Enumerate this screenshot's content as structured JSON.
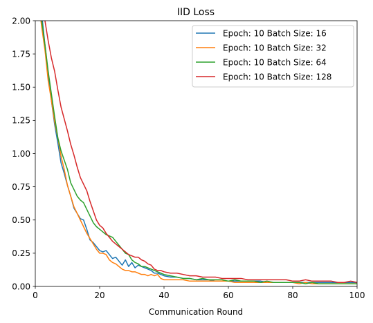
{
  "chart_data": {
    "type": "line",
    "title": "IID Loss",
    "xlabel": "Communication Round",
    "ylabel": "",
    "xlim": [
      0,
      100
    ],
    "ylim": [
      0,
      2.0
    ],
    "xticks": [
      0,
      20,
      40,
      60,
      80,
      100
    ],
    "xtick_labels": [
      "0",
      "20",
      "40",
      "60",
      "80",
      "100"
    ],
    "yticks": [
      0,
      0.25,
      0.5,
      0.75,
      1.0,
      1.25,
      1.5,
      1.75,
      2.0
    ],
    "ytick_labels": [
      "0.00",
      "0.25",
      "0.50",
      "0.75",
      "1.00",
      "1.25",
      "1.50",
      "1.75",
      "2.00"
    ],
    "grid": false,
    "legend_position": "top-right",
    "series": [
      {
        "name": "Epoch: 10 Batch Size: 16",
        "color": "#1f77b4",
        "x": [
          1,
          2,
          3,
          4,
          5,
          6,
          7,
          8,
          9,
          10,
          11,
          12,
          13,
          14,
          15,
          16,
          17,
          18,
          19,
          20,
          21,
          22,
          23,
          24,
          25,
          26,
          27,
          28,
          29,
          30,
          31,
          32,
          33,
          34,
          35,
          36,
          37,
          38,
          39,
          40,
          42,
          44,
          46,
          48,
          50,
          52,
          54,
          56,
          58,
          60,
          62,
          64,
          66,
          68,
          70,
          72,
          74,
          76,
          78,
          80,
          82,
          84,
          86,
          88,
          90,
          92,
          94,
          96,
          98,
          100
        ],
        "values": [
          2.2,
          2.05,
          1.82,
          1.6,
          1.4,
          1.22,
          1.08,
          0.93,
          0.85,
          0.76,
          0.68,
          0.59,
          0.55,
          0.51,
          0.5,
          0.43,
          0.35,
          0.33,
          0.3,
          0.27,
          0.26,
          0.27,
          0.24,
          0.21,
          0.22,
          0.19,
          0.16,
          0.2,
          0.15,
          0.18,
          0.14,
          0.16,
          0.15,
          0.14,
          0.13,
          0.12,
          0.1,
          0.1,
          0.09,
          0.08,
          0.07,
          0.07,
          0.06,
          0.06,
          0.05,
          0.05,
          0.05,
          0.04,
          0.04,
          0.04,
          0.04,
          0.04,
          0.04,
          0.04,
          0.04,
          0.03,
          0.03,
          0.03,
          0.03,
          0.03,
          0.03,
          0.03,
          0.03,
          0.03,
          0.03,
          0.03,
          0.03,
          0.03,
          0.03,
          0.03
        ]
      },
      {
        "name": "Epoch: 10 Batch Size: 32",
        "color": "#ff7f0e",
        "x": [
          1,
          2,
          3,
          4,
          5,
          6,
          7,
          8,
          9,
          10,
          11,
          12,
          13,
          14,
          15,
          16,
          17,
          18,
          19,
          20,
          21,
          22,
          23,
          24,
          25,
          26,
          27,
          28,
          29,
          30,
          31,
          32,
          33,
          34,
          35,
          36,
          37,
          38,
          39,
          40,
          42,
          44,
          46,
          48,
          50,
          52,
          54,
          56,
          58,
          60,
          62,
          64,
          66,
          68,
          70,
          72,
          74,
          76,
          78,
          80,
          82,
          84,
          86,
          88,
          90,
          92,
          94,
          96,
          98,
          100
        ],
        "values": [
          2.15,
          1.95,
          1.78,
          1.55,
          1.4,
          1.24,
          1.12,
          0.98,
          0.88,
          0.76,
          0.68,
          0.6,
          0.55,
          0.5,
          0.45,
          0.4,
          0.36,
          0.32,
          0.28,
          0.25,
          0.25,
          0.24,
          0.2,
          0.18,
          0.17,
          0.15,
          0.13,
          0.12,
          0.12,
          0.11,
          0.11,
          0.1,
          0.09,
          0.09,
          0.08,
          0.09,
          0.08,
          0.09,
          0.06,
          0.05,
          0.05,
          0.05,
          0.05,
          0.04,
          0.04,
          0.04,
          0.04,
          0.04,
          0.04,
          0.04,
          0.03,
          0.03,
          0.03,
          0.03,
          0.03,
          0.03,
          0.03,
          0.03,
          0.03,
          0.03,
          0.02,
          0.03,
          0.02,
          0.02,
          0.02,
          0.02,
          0.02,
          0.02,
          0.02,
          0.02
        ]
      },
      {
        "name": "Epoch: 10 Batch Size: 64",
        "color": "#2ca02c",
        "x": [
          1,
          2,
          3,
          4,
          5,
          6,
          7,
          8,
          9,
          10,
          11,
          12,
          13,
          14,
          15,
          16,
          17,
          18,
          19,
          20,
          21,
          22,
          23,
          24,
          25,
          26,
          27,
          28,
          29,
          30,
          31,
          32,
          33,
          34,
          35,
          36,
          37,
          38,
          39,
          40,
          42,
          44,
          46,
          48,
          50,
          52,
          54,
          56,
          58,
          60,
          62,
          64,
          66,
          68,
          70,
          72,
          74,
          76,
          78,
          80,
          82,
          84,
          86,
          88,
          90,
          92,
          94,
          96,
          98,
          100
        ],
        "values": [
          2.2,
          2.0,
          1.82,
          1.62,
          1.45,
          1.28,
          1.12,
          1.02,
          0.95,
          0.88,
          0.78,
          0.73,
          0.68,
          0.65,
          0.63,
          0.58,
          0.53,
          0.48,
          0.45,
          0.43,
          0.41,
          0.39,
          0.38,
          0.37,
          0.34,
          0.31,
          0.28,
          0.25,
          0.24,
          0.2,
          0.18,
          0.17,
          0.15,
          0.15,
          0.14,
          0.13,
          0.12,
          0.11,
          0.1,
          0.09,
          0.08,
          0.07,
          0.06,
          0.06,
          0.05,
          0.06,
          0.05,
          0.05,
          0.05,
          0.04,
          0.05,
          0.04,
          0.04,
          0.04,
          0.03,
          0.04,
          0.03,
          0.03,
          0.03,
          0.03,
          0.03,
          0.02,
          0.03,
          0.02,
          0.02,
          0.02,
          0.02,
          0.02,
          0.02,
          0.02
        ]
      },
      {
        "name": "Epoch: 10 Batch Size: 128",
        "color": "#d62728",
        "x": [
          1,
          2,
          3,
          4,
          5,
          6,
          7,
          8,
          9,
          10,
          11,
          12,
          13,
          14,
          15,
          16,
          17,
          18,
          19,
          20,
          21,
          22,
          23,
          24,
          25,
          26,
          27,
          28,
          29,
          30,
          31,
          32,
          33,
          34,
          35,
          36,
          37,
          38,
          39,
          40,
          42,
          44,
          46,
          48,
          50,
          52,
          54,
          56,
          58,
          60,
          62,
          64,
          66,
          68,
          70,
          72,
          74,
          76,
          78,
          80,
          82,
          84,
          86,
          88,
          90,
          92,
          94,
          96,
          98,
          100
        ],
        "values": [
          2.3,
          2.1,
          2.0,
          1.85,
          1.72,
          1.62,
          1.48,
          1.35,
          1.26,
          1.17,
          1.07,
          0.99,
          0.9,
          0.82,
          0.77,
          0.72,
          0.64,
          0.57,
          0.5,
          0.46,
          0.44,
          0.4,
          0.37,
          0.34,
          0.32,
          0.3,
          0.28,
          0.26,
          0.24,
          0.23,
          0.22,
          0.22,
          0.2,
          0.19,
          0.17,
          0.16,
          0.13,
          0.12,
          0.12,
          0.11,
          0.1,
          0.1,
          0.09,
          0.08,
          0.08,
          0.07,
          0.07,
          0.07,
          0.06,
          0.06,
          0.06,
          0.06,
          0.05,
          0.05,
          0.05,
          0.05,
          0.05,
          0.05,
          0.05,
          0.04,
          0.04,
          0.05,
          0.04,
          0.04,
          0.04,
          0.04,
          0.03,
          0.03,
          0.04,
          0.03
        ]
      }
    ]
  }
}
